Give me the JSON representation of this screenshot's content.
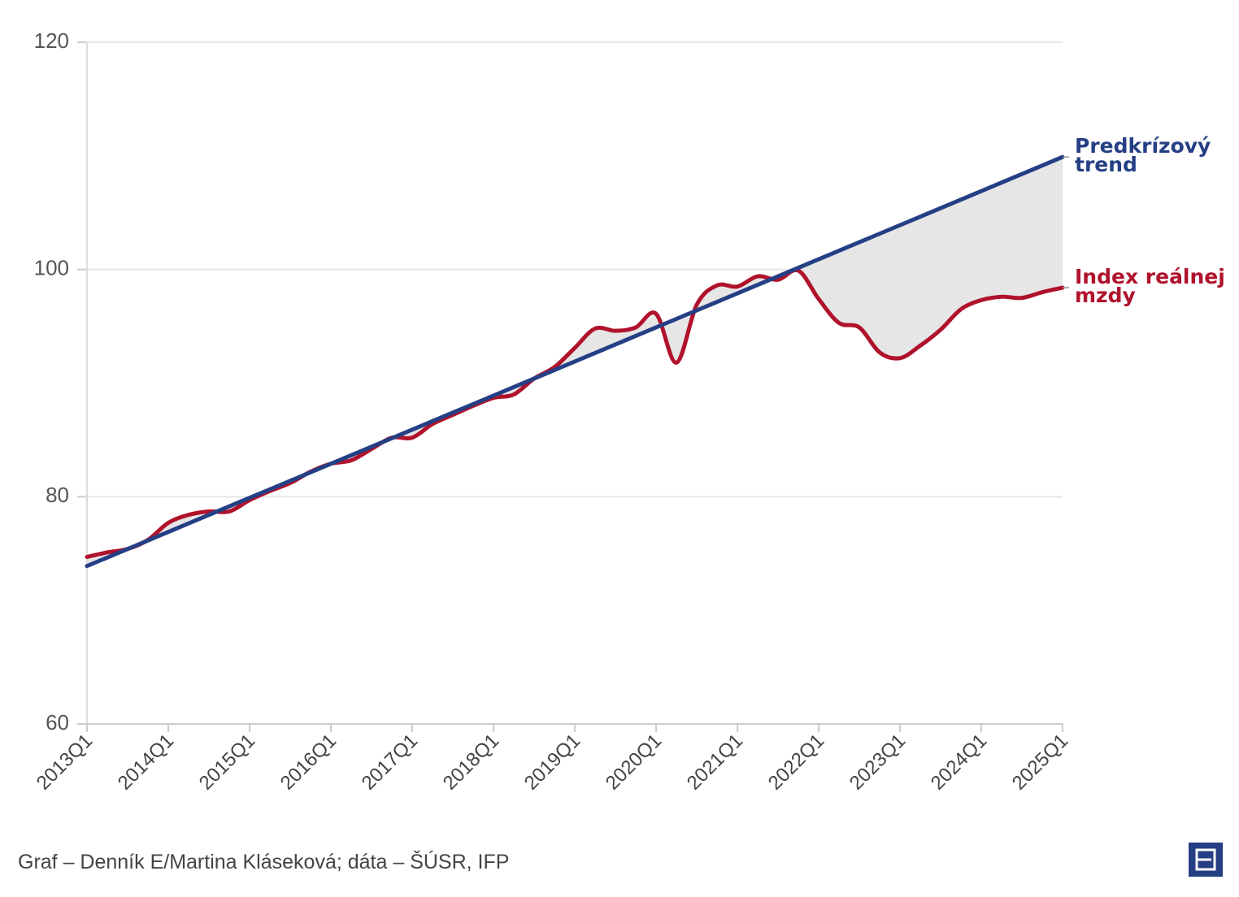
{
  "chart_data": {
    "type": "line",
    "categories": [
      "2013Q1",
      null,
      null,
      null,
      "2014Q1",
      null,
      null,
      null,
      "2015Q1",
      null,
      null,
      null,
      "2016Q1",
      null,
      null,
      null,
      "2017Q1",
      null,
      null,
      null,
      "2018Q1",
      null,
      null,
      null,
      "2019Q1",
      null,
      null,
      null,
      "2020Q1",
      null,
      null,
      null,
      "2021Q1",
      null,
      null,
      null,
      "2022Q1",
      null,
      null,
      null,
      "2023Q1",
      null,
      null,
      null,
      "2024Q1",
      null,
      null,
      null,
      "2025Q1"
    ],
    "series": [
      {
        "name": "Index reálnej mzdy",
        "color": "#b0122c",
        "values": [
          74.7,
          75.1,
          75.4,
          76.2,
          77.7,
          78.4,
          78.7,
          78.7,
          79.7,
          80.5,
          81.2,
          82.2,
          82.9,
          83.2,
          84.2,
          85.2,
          85.2,
          86.4,
          87.2,
          88.0,
          88.7,
          89.0,
          90.4,
          91.4,
          93.1,
          94.8,
          94.6,
          94.9,
          96.1,
          91.8,
          96.9,
          98.6,
          98.5,
          99.4,
          99.1,
          99.9,
          97.4,
          95.3,
          94.9,
          92.7,
          92.2,
          93.3,
          94.7,
          96.5,
          97.3,
          97.6,
          97.5,
          98.0,
          98.4
        ]
      },
      {
        "name": "Predkrízový trend",
        "color": "#253f85",
        "values": [
          73.9,
          74.65,
          75.4,
          76.15,
          76.9,
          77.65,
          78.4,
          79.15,
          79.9,
          80.65,
          81.4,
          82.15,
          82.9,
          83.65,
          84.4,
          85.15,
          85.9,
          86.65,
          87.4,
          88.15,
          88.9,
          89.65,
          90.4,
          91.15,
          91.9,
          92.65,
          93.4,
          94.15,
          94.9,
          95.65,
          96.4,
          97.15,
          97.9,
          98.65,
          99.4,
          100.15,
          100.9,
          101.65,
          102.4,
          103.15,
          103.9,
          104.65,
          105.4,
          106.15,
          106.9,
          107.65,
          108.4,
          109.15,
          109.9
        ]
      }
    ],
    "ylim": [
      60,
      120
    ],
    "yticks": [
      60,
      80,
      100,
      120
    ],
    "grid": true,
    "source": "Graf – Denník E/Martina Kláseková; dáta – ŠÚSR, IFP"
  }
}
